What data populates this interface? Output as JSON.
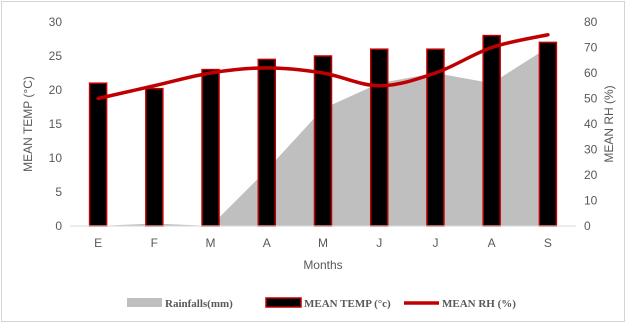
{
  "chart_data": {
    "type": "bar",
    "categories": [
      "E",
      "F",
      "M",
      "A",
      "M",
      "J",
      "J",
      "A",
      "S"
    ],
    "xlabel": "Months",
    "ylabel_left": "MEAN TEMP (°C)",
    "ylabel_right": "MEAN RH (%)",
    "ylim_left": [
      0,
      30
    ],
    "ylim_right": [
      0,
      80
    ],
    "yticks_left": [
      "0",
      "5",
      "10",
      "15",
      "20",
      "25",
      "30"
    ],
    "yticks_right": [
      "0",
      "10",
      "20",
      "30",
      "40",
      "50",
      "60",
      "70",
      "80"
    ],
    "grid": false,
    "legend_position": "bottom",
    "series": [
      {
        "name": "Rainfalls(mm)",
        "type": "area",
        "axis": "right",
        "color": "#bfbfbf",
        "values": [
          0,
          1,
          0,
          22,
          46,
          56,
          60,
          56,
          70
        ]
      },
      {
        "name": "MEAN TEMP (°c)",
        "type": "bar",
        "axis": "left",
        "color": "#000000",
        "edge_color": "#c00000",
        "values": [
          21,
          20.2,
          23,
          24.5,
          25,
          26,
          26,
          28,
          27
        ]
      },
      {
        "name": "MEAN RH (%)",
        "type": "line",
        "axis": "right",
        "color": "#c00000",
        "values": [
          50,
          55,
          60,
          62,
          60,
          55,
          60,
          70,
          75
        ]
      }
    ]
  }
}
